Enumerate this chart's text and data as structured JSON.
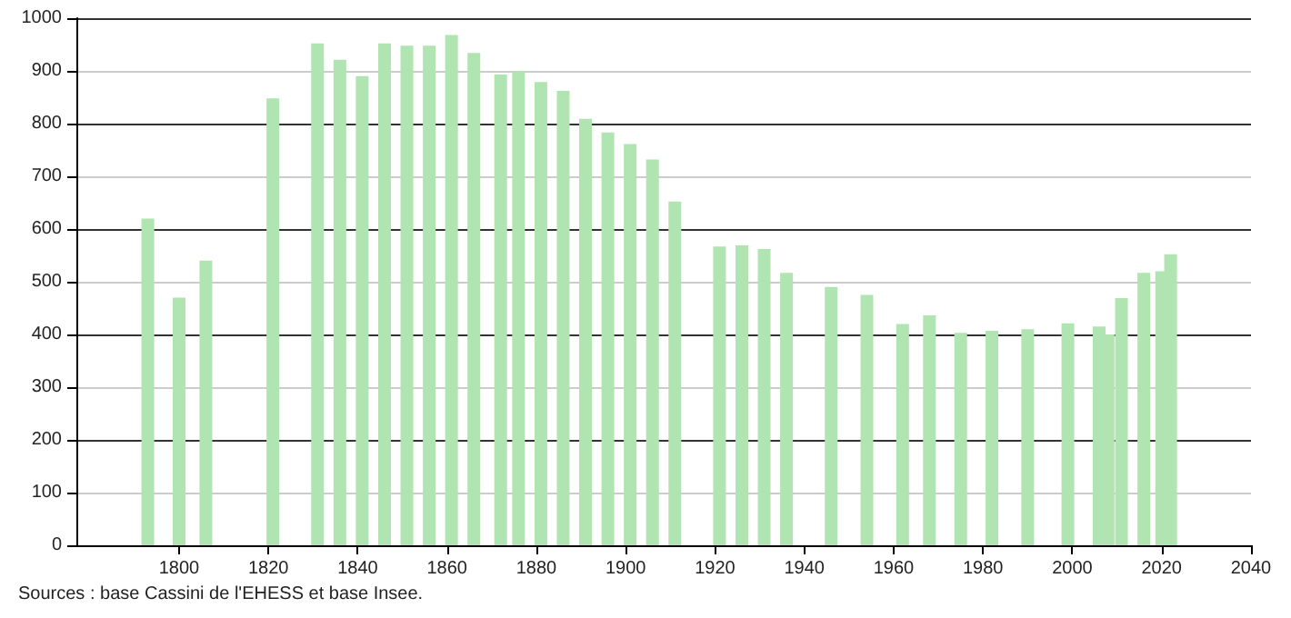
{
  "chart_data": {
    "type": "bar",
    "annotations": [
      "Sources : base Cassini de l'EHESS et base Insee."
    ],
    "x": [
      1793,
      1800,
      1806,
      1821,
      1831,
      1836,
      1841,
      1846,
      1851,
      1856,
      1861,
      1866,
      1872,
      1876,
      1881,
      1886,
      1891,
      1896,
      1901,
      1906,
      1911,
      1921,
      1926,
      1931,
      1936,
      1946,
      1954,
      1962,
      1968,
      1975,
      1982,
      1990,
      1999,
      2006,
      2008,
      2011,
      2016,
      2020,
      2022
    ],
    "values": [
      620,
      470,
      540,
      848,
      952,
      921,
      890,
      952,
      948,
      948,
      968,
      934,
      893,
      899,
      879,
      862,
      809,
      783,
      761,
      732,
      652,
      567,
      569,
      562,
      517,
      490,
      475,
      420,
      436,
      403,
      407,
      410,
      421,
      415,
      400,
      469,
      517,
      520,
      552
    ],
    "color": "#b0e4b0",
    "xlim": [
      1777,
      2040
    ],
    "xticks": [
      1800,
      1820,
      1840,
      1860,
      1880,
      1900,
      1920,
      1940,
      1960,
      1980,
      2000,
      2020,
      2040
    ],
    "ylim": [
      0,
      1000
    ],
    "yticks": [
      0,
      100,
      200,
      300,
      400,
      500,
      600,
      700,
      800,
      900,
      1000
    ],
    "grid": "y"
  }
}
